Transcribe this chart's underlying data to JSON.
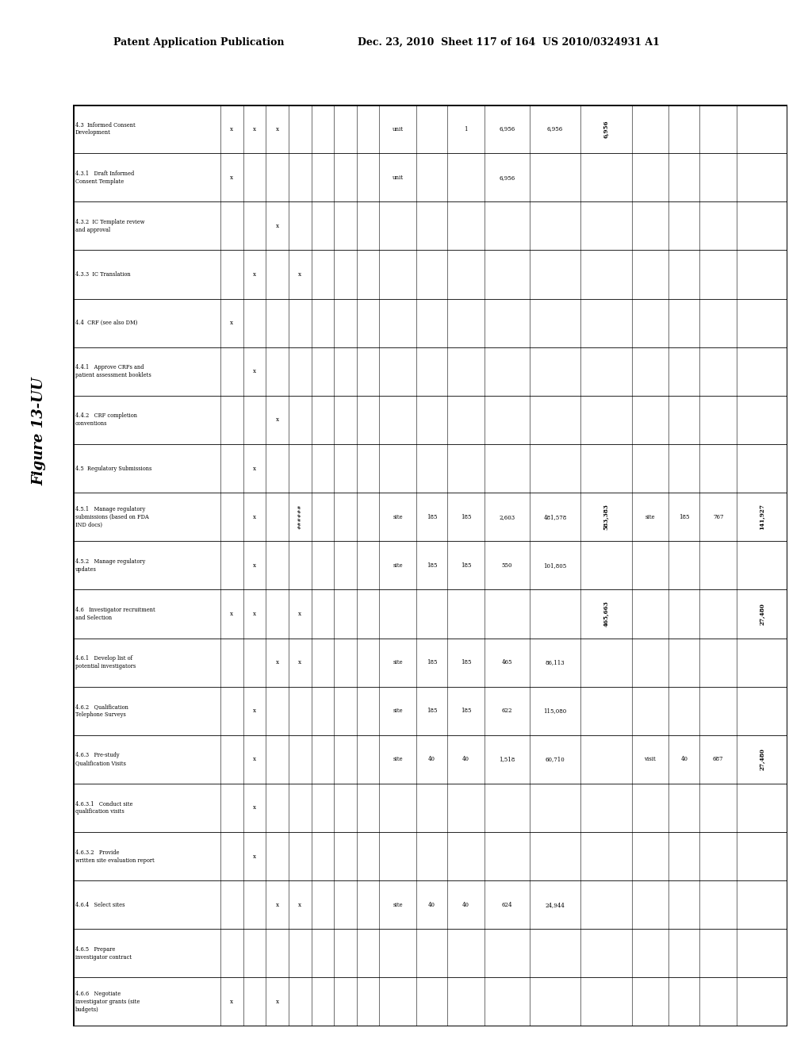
{
  "figure_label": "Figure 13-UU",
  "header_line1": "Patent Application Publication",
  "header_line2": "Dec. 23, 2010  Sheet 117 of 164  US 2010/0324931 A1",
  "rows": [
    {
      "label": "4.3  Informed Consent\nDevelopment",
      "checks": [
        "x",
        "x",
        "x",
        "",
        "",
        "",
        ""
      ],
      "unit": "unit",
      "n_units": "",
      "unit_cost": "1",
      "total_cost": "6,956",
      "total_budget": "6,956",
      "grand_total": "6,956",
      "unit2": "",
      "n_units2": "",
      "unit_cost2": "",
      "grand_total2": ""
    },
    {
      "label": "4.3.1   Draft Informed\nConsent Template",
      "checks": [
        "x",
        "",
        "",
        "",
        "",
        "",
        ""
      ],
      "unit": "unit",
      "n_units": "",
      "unit_cost": "",
      "total_cost": "6,956",
      "total_budget": "",
      "grand_total": "",
      "unit2": "",
      "n_units2": "",
      "unit_cost2": "",
      "grand_total2": ""
    },
    {
      "label": "4.3.2  IC Template review\nand approval",
      "checks": [
        "",
        "",
        "x",
        "",
        "",
        "",
        ""
      ],
      "unit": "",
      "n_units": "",
      "unit_cost": "",
      "total_cost": "",
      "total_budget": "",
      "grand_total": "",
      "unit2": "",
      "n_units2": "",
      "unit_cost2": "",
      "grand_total2": ""
    },
    {
      "label": "4.3.3  IC Translation",
      "checks": [
        "",
        "x",
        "",
        "x",
        "",
        "",
        ""
      ],
      "unit": "",
      "n_units": "",
      "unit_cost": "",
      "total_cost": "",
      "total_budget": "",
      "grand_total": "",
      "unit2": "",
      "n_units2": "",
      "unit_cost2": "",
      "grand_total2": ""
    },
    {
      "label": "4.4  CRF (see also DM)",
      "checks": [
        "x",
        "",
        "",
        "",
        "",
        "",
        ""
      ],
      "unit": "",
      "n_units": "",
      "unit_cost": "",
      "total_cost": "",
      "total_budget": "",
      "grand_total": "",
      "unit2": "",
      "n_units2": "",
      "unit_cost2": "",
      "grand_total2": ""
    },
    {
      "label": "4.4.1   Approve CRFs and\npatient assessment booklets",
      "checks": [
        "",
        "x",
        "",
        "",
        "",
        "",
        ""
      ],
      "unit": "",
      "n_units": "",
      "unit_cost": "",
      "total_cost": "",
      "total_budget": "",
      "grand_total": "",
      "unit2": "",
      "n_units2": "",
      "unit_cost2": "",
      "grand_total2": ""
    },
    {
      "label": "4.4.2   CRF completion\nconventions",
      "checks": [
        "",
        "",
        "x",
        "",
        "",
        "",
        ""
      ],
      "unit": "",
      "n_units": "",
      "unit_cost": "",
      "total_cost": "",
      "total_budget": "",
      "grand_total": "",
      "unit2": "",
      "n_units2": "",
      "unit_cost2": "",
      "grand_total2": ""
    },
    {
      "label": "4.5  Regulatory Submissions",
      "checks": [
        "",
        "x",
        "",
        "",
        "",
        "",
        ""
      ],
      "unit": "",
      "n_units": "",
      "unit_cost": "",
      "total_cost": "",
      "total_budget": "",
      "grand_total": "",
      "unit2": "",
      "n_units2": "",
      "unit_cost2": "",
      "grand_total2": ""
    },
    {
      "label": "4.5.1   Manage regulatory\nsubmissions (based on FDA\nIND docs)",
      "checks": [
        "",
        "x",
        "",
        "######",
        "",
        "",
        ""
      ],
      "unit": "site",
      "n_units": "185",
      "unit_cost": "185",
      "total_cost": "2,603",
      "total_budget": "481,578",
      "grand_total": "583,383",
      "unit2": "site",
      "n_units2": "185",
      "unit_cost2": "767",
      "grand_total2": "141,927"
    },
    {
      "label": "4.5.2   Manage regulatory\nupdates",
      "checks": [
        "",
        "x",
        "",
        "",
        "",
        "",
        ""
      ],
      "unit": "site",
      "n_units": "185",
      "unit_cost": "185",
      "total_cost": "550",
      "total_budget": "101,805",
      "grand_total": "",
      "unit2": "",
      "n_units2": "",
      "unit_cost2": "",
      "grand_total2": ""
    },
    {
      "label": "4.6   Investigator recruitment\nand Selection",
      "checks": [
        "x",
        "x",
        "",
        "x",
        "",
        "",
        ""
      ],
      "unit": "",
      "n_units": "",
      "unit_cost": "",
      "total_cost": "",
      "total_budget": "",
      "grand_total": "465,663",
      "unit2": "",
      "n_units2": "",
      "unit_cost2": "",
      "grand_total2": "27,480"
    },
    {
      "label": "4.6.1   Develop list of\npotential investigators",
      "checks": [
        "",
        "",
        "x",
        "x",
        "",
        "",
        ""
      ],
      "unit": "site",
      "n_units": "185",
      "unit_cost": "185",
      "total_cost": "465",
      "total_budget": "86,113",
      "grand_total": "",
      "unit2": "",
      "n_units2": "",
      "unit_cost2": "",
      "grand_total2": ""
    },
    {
      "label": "4.6.2   Qualification\nTelephone Surveys",
      "checks": [
        "",
        "x",
        "",
        "",
        "",
        "",
        ""
      ],
      "unit": "site",
      "n_units": "185",
      "unit_cost": "185",
      "total_cost": "622",
      "total_budget": "115,080",
      "grand_total": "",
      "unit2": "",
      "n_units2": "",
      "unit_cost2": "",
      "grand_total2": ""
    },
    {
      "label": "4.6.3   Pre-study\nQualification Visits",
      "checks": [
        "",
        "x",
        "",
        "",
        "",
        "",
        ""
      ],
      "unit": "site",
      "n_units": "40",
      "unit_cost": "40",
      "total_cost": "1,518",
      "total_budget": "60,710",
      "grand_total": "",
      "unit2": "visit",
      "n_units2": "40",
      "unit_cost2": "687",
      "grand_total2": "27,480"
    },
    {
      "label": "4.6.3.1   Conduct site\nqualification visits",
      "checks": [
        "",
        "x",
        "",
        "",
        "",
        "",
        ""
      ],
      "unit": "",
      "n_units": "",
      "unit_cost": "",
      "total_cost": "",
      "total_budget": "",
      "grand_total": "",
      "unit2": "",
      "n_units2": "",
      "unit_cost2": "",
      "grand_total2": ""
    },
    {
      "label": "4.6.3.2   Provide\nwritten site evaluation report",
      "checks": [
        "",
        "x",
        "",
        "",
        "",
        "",
        ""
      ],
      "unit": "",
      "n_units": "",
      "unit_cost": "",
      "total_cost": "",
      "total_budget": "",
      "grand_total": "",
      "unit2": "",
      "n_units2": "",
      "unit_cost2": "",
      "grand_total2": ""
    },
    {
      "label": "4.6.4   Select sites",
      "checks": [
        "",
        "",
        "x",
        "x",
        "",
        "",
        ""
      ],
      "unit": "site",
      "n_units": "40",
      "unit_cost": "40",
      "total_cost": "624",
      "total_budget": "24,944",
      "grand_total": "",
      "unit2": "",
      "n_units2": "",
      "unit_cost2": "",
      "grand_total2": ""
    },
    {
      "label": "4.6.5   Prepare\ninvestigator contract",
      "checks": [
        "",
        "",
        "",
        "",
        "",
        "",
        ""
      ],
      "unit": "",
      "n_units": "",
      "unit_cost": "",
      "total_cost": "",
      "total_budget": "",
      "grand_total": "",
      "unit2": "",
      "n_units2": "",
      "unit_cost2": "",
      "grand_total2": ""
    },
    {
      "label": "4.6.6   Negotiate\ninvestigator grants (site\nbudgets)",
      "checks": [
        "x",
        "",
        "x",
        "",
        "",
        "",
        ""
      ],
      "unit": "",
      "n_units": "",
      "unit_cost": "",
      "total_cost": "",
      "total_budget": "",
      "grand_total": "",
      "unit2": "",
      "n_units2": "",
      "unit_cost2": "",
      "grand_total2": ""
    }
  ]
}
